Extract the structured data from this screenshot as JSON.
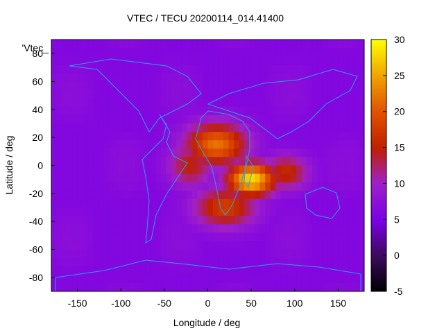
{
  "chart_data": {
    "type": "heatmap",
    "title": "VTEC / TECU 20200114_014.41400",
    "xlabel": "Longitude / deg",
    "ylabel": "Latitude / deg",
    "legend_key": "'Vtec_",
    "xlim": [
      -180,
      180
    ],
    "ylim": [
      -90,
      90
    ],
    "x_ticks": [
      -150,
      -100,
      -50,
      0,
      50,
      100,
      150
    ],
    "y_ticks": [
      -80,
      -60,
      -40,
      -20,
      0,
      20,
      40,
      60,
      80
    ],
    "colorbar": {
      "range": [
        -5,
        30
      ],
      "ticks": [
        -5,
        0,
        5,
        10,
        15,
        20,
        25,
        30
      ]
    },
    "background_value": 6,
    "anomaly": {
      "center_lon": 50,
      "center_lat": -10,
      "peak_value": 28,
      "regions": [
        {
          "lon": 50,
          "lat": -10,
          "value": 28,
          "spread_lon": 28,
          "spread_lat": 12
        },
        {
          "lon": 10,
          "lat": 15,
          "value": 22,
          "spread_lon": 35,
          "spread_lat": 15
        },
        {
          "lon": 20,
          "lat": -30,
          "value": 18,
          "spread_lon": 35,
          "spread_lat": 14
        },
        {
          "lon": 90,
          "lat": -5,
          "value": 16,
          "spread_lon": 25,
          "spread_lat": 12
        },
        {
          "lon": -20,
          "lat": 0,
          "value": 15,
          "spread_lon": 25,
          "spread_lat": 15
        }
      ]
    }
  }
}
